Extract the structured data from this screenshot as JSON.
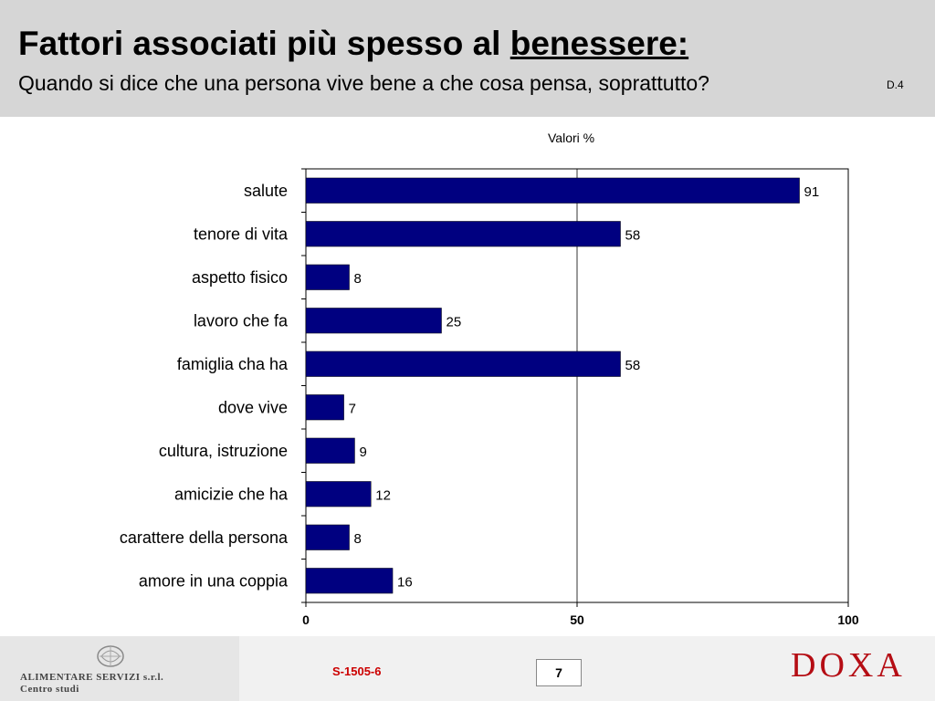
{
  "header": {
    "title_main": "Fattori associati più spesso al ",
    "title_emphasis": "benessere:",
    "subtitle": "Quando si dice che una persona vive bene a che cosa pensa, soprattutto?",
    "code": "D.4"
  },
  "chart_data": {
    "type": "bar",
    "orientation": "horizontal",
    "unit_label": "Valori %",
    "categories": [
      "salute",
      "tenore di vita",
      "aspetto fisico",
      "lavoro che fa",
      "famiglia cha ha",
      "dove vive",
      "cultura, istruzione",
      "amicizie che ha",
      "carattere della persona",
      "amore in una coppia"
    ],
    "values": [
      91,
      58,
      8,
      25,
      58,
      7,
      9,
      12,
      8,
      16
    ],
    "xlim": [
      0,
      100
    ],
    "xticks": [
      0,
      50,
      100
    ],
    "gridlines": [
      50
    ],
    "bar_color": "#000080"
  },
  "footer": {
    "company_name": "ALIMENTARE SERVIZI s.r.l.",
    "company_sub": "Centro studi",
    "doc_code": "S-1505-6",
    "page_number": "7",
    "brand": "DOXA"
  },
  "colors": {
    "header_bg": "#d6d6d6",
    "bar": "#000080",
    "doc_code": "#cc0000",
    "brand": "#b50d14"
  }
}
